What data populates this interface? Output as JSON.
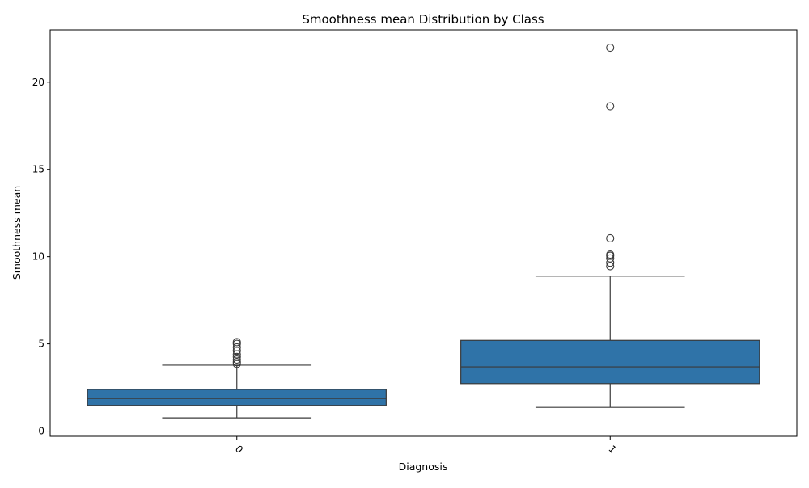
{
  "chart_data": {
    "type": "box",
    "title": "Smoothness mean Distribution by Class",
    "xlabel": "Diagnosis",
    "ylabel": "Smoothness mean",
    "categories": [
      "0",
      "1"
    ],
    "ylim": [
      -0.3,
      23.0
    ],
    "yticks": [
      0,
      5,
      10,
      15,
      20
    ],
    "grid": false,
    "colors": {
      "box": "#2f73a8",
      "line": "#3a3a3a"
    },
    "boxes": [
      {
        "category": "0",
        "whisker_low": 0.76,
        "q1": 1.47,
        "median": 1.87,
        "q3": 2.39,
        "whisker_high": 3.78,
        "outliers": [
          3.85,
          3.95,
          4.1,
          4.25,
          4.4,
          4.6,
          4.8,
          5.0,
          5.1
        ]
      },
      {
        "category": "1",
        "whisker_low": 1.36,
        "q1": 2.72,
        "median": 3.68,
        "q3": 5.2,
        "whisker_high": 8.88,
        "outliers": [
          9.45,
          9.65,
          9.9,
          10.05,
          10.12,
          11.05,
          18.62,
          21.98
        ]
      }
    ]
  }
}
